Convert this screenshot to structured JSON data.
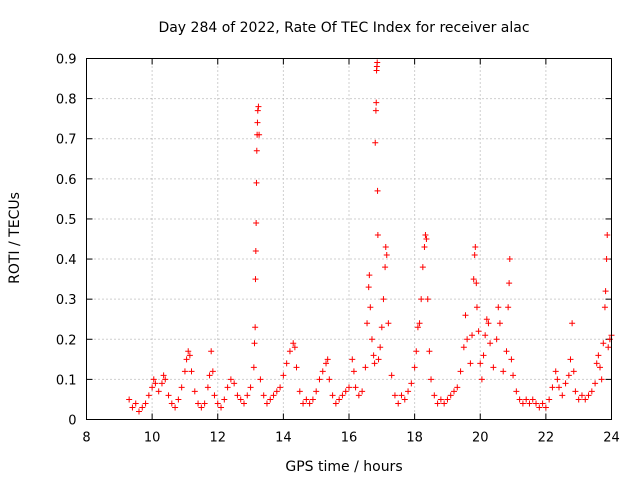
{
  "chart_data": {
    "type": "scatter",
    "title": "Day 284 of 2022, Rate Of TEC Index for receiver alac",
    "xlabel": "GPS time / hours",
    "ylabel": "ROTI / TECUs",
    "xlim": [
      8,
      24
    ],
    "ylim": [
      0,
      0.9
    ],
    "grid": true,
    "xticks": [
      8,
      10,
      12,
      14,
      16,
      18,
      20,
      22,
      24
    ],
    "xtick_labels": [
      "8",
      "10",
      "12",
      "14",
      "16",
      "18",
      "20",
      "22",
      "24"
    ],
    "yticks": [
      0,
      0.1,
      0.2,
      0.3,
      0.4,
      0.5,
      0.6,
      0.7,
      0.8,
      0.9
    ],
    "ytick_labels": [
      "0",
      "0.1",
      "0.2",
      "0.3",
      "0.4",
      "0.5",
      "0.6",
      "0.7",
      "0.8",
      "0.9"
    ],
    "marker": "+",
    "color": "#ff0000",
    "series": [
      {
        "name": "ROTI",
        "points": [
          [
            9.3,
            0.05
          ],
          [
            9.4,
            0.03
          ],
          [
            9.5,
            0.04
          ],
          [
            9.6,
            0.02
          ],
          [
            9.7,
            0.03
          ],
          [
            9.8,
            0.04
          ],
          [
            9.9,
            0.06
          ],
          [
            10.0,
            0.08
          ],
          [
            10.05,
            0.1
          ],
          [
            10.1,
            0.09
          ],
          [
            10.2,
            0.07
          ],
          [
            10.3,
            0.09
          ],
          [
            10.35,
            0.11
          ],
          [
            10.4,
            0.1
          ],
          [
            10.5,
            0.06
          ],
          [
            10.6,
            0.04
          ],
          [
            10.7,
            0.03
          ],
          [
            10.8,
            0.05
          ],
          [
            10.9,
            0.08
          ],
          [
            11.0,
            0.12
          ],
          [
            11.05,
            0.15
          ],
          [
            11.1,
            0.17
          ],
          [
            11.15,
            0.16
          ],
          [
            11.2,
            0.12
          ],
          [
            11.3,
            0.07
          ],
          [
            11.4,
            0.04
          ],
          [
            11.5,
            0.03
          ],
          [
            11.6,
            0.04
          ],
          [
            11.7,
            0.08
          ],
          [
            11.75,
            0.11
          ],
          [
            11.8,
            0.17
          ],
          [
            11.85,
            0.12
          ],
          [
            11.9,
            0.06
          ],
          [
            12.0,
            0.04
          ],
          [
            12.1,
            0.03
          ],
          [
            12.2,
            0.05
          ],
          [
            12.3,
            0.08
          ],
          [
            12.4,
            0.1
          ],
          [
            12.5,
            0.09
          ],
          [
            12.6,
            0.06
          ],
          [
            12.7,
            0.05
          ],
          [
            12.8,
            0.04
          ],
          [
            12.9,
            0.06
          ],
          [
            13.0,
            0.08
          ],
          [
            13.1,
            0.13
          ],
          [
            13.12,
            0.19
          ],
          [
            13.14,
            0.23
          ],
          [
            13.15,
            0.35
          ],
          [
            13.16,
            0.42
          ],
          [
            13.17,
            0.49
          ],
          [
            13.18,
            0.59
          ],
          [
            13.19,
            0.67
          ],
          [
            13.2,
            0.71
          ],
          [
            13.21,
            0.74
          ],
          [
            13.22,
            0.77
          ],
          [
            13.24,
            0.78
          ],
          [
            13.26,
            0.71
          ],
          [
            13.3,
            0.1
          ],
          [
            13.4,
            0.06
          ],
          [
            13.5,
            0.04
          ],
          [
            13.6,
            0.05
          ],
          [
            13.7,
            0.06
          ],
          [
            13.8,
            0.07
          ],
          [
            13.9,
            0.08
          ],
          [
            14.0,
            0.11
          ],
          [
            14.1,
            0.14
          ],
          [
            14.2,
            0.17
          ],
          [
            14.3,
            0.19
          ],
          [
            14.35,
            0.18
          ],
          [
            14.4,
            0.13
          ],
          [
            14.5,
            0.07
          ],
          [
            14.6,
            0.04
          ],
          [
            14.7,
            0.05
          ],
          [
            14.8,
            0.04
          ],
          [
            14.9,
            0.05
          ],
          [
            15.0,
            0.07
          ],
          [
            15.1,
            0.1
          ],
          [
            15.2,
            0.12
          ],
          [
            15.3,
            0.14
          ],
          [
            15.35,
            0.15
          ],
          [
            15.4,
            0.1
          ],
          [
            15.5,
            0.06
          ],
          [
            15.6,
            0.04
          ],
          [
            15.7,
            0.05
          ],
          [
            15.8,
            0.06
          ],
          [
            15.9,
            0.07
          ],
          [
            16.0,
            0.08
          ],
          [
            16.1,
            0.15
          ],
          [
            16.15,
            0.12
          ],
          [
            16.2,
            0.08
          ],
          [
            16.3,
            0.06
          ],
          [
            16.4,
            0.07
          ],
          [
            16.5,
            0.13
          ],
          [
            16.55,
            0.24
          ],
          [
            16.6,
            0.33
          ],
          [
            16.62,
            0.36
          ],
          [
            16.65,
            0.28
          ],
          [
            16.7,
            0.2
          ],
          [
            16.75,
            0.16
          ],
          [
            16.78,
            0.14
          ],
          [
            16.8,
            0.69
          ],
          [
            16.82,
            0.77
          ],
          [
            16.83,
            0.79
          ],
          [
            16.84,
            0.87
          ],
          [
            16.85,
            0.88
          ],
          [
            16.86,
            0.89
          ],
          [
            16.87,
            0.57
          ],
          [
            16.88,
            0.46
          ],
          [
            16.9,
            0.15
          ],
          [
            16.95,
            0.18
          ],
          [
            17.0,
            0.23
          ],
          [
            17.05,
            0.3
          ],
          [
            17.1,
            0.38
          ],
          [
            17.12,
            0.43
          ],
          [
            17.15,
            0.41
          ],
          [
            17.2,
            0.24
          ],
          [
            17.3,
            0.11
          ],
          [
            17.4,
            0.06
          ],
          [
            17.5,
            0.04
          ],
          [
            17.6,
            0.06
          ],
          [
            17.7,
            0.05
          ],
          [
            17.8,
            0.07
          ],
          [
            17.9,
            0.09
          ],
          [
            18.0,
            0.13
          ],
          [
            18.05,
            0.17
          ],
          [
            18.1,
            0.23
          ],
          [
            18.15,
            0.24
          ],
          [
            18.2,
            0.3
          ],
          [
            18.25,
            0.38
          ],
          [
            18.3,
            0.43
          ],
          [
            18.33,
            0.46
          ],
          [
            18.36,
            0.45
          ],
          [
            18.4,
            0.3
          ],
          [
            18.45,
            0.17
          ],
          [
            18.5,
            0.1
          ],
          [
            18.6,
            0.06
          ],
          [
            18.7,
            0.04
          ],
          [
            18.8,
            0.05
          ],
          [
            18.9,
            0.04
          ],
          [
            19.0,
            0.05
          ],
          [
            19.1,
            0.06
          ],
          [
            19.2,
            0.07
          ],
          [
            19.3,
            0.08
          ],
          [
            19.4,
            0.12
          ],
          [
            19.5,
            0.18
          ],
          [
            19.55,
            0.26
          ],
          [
            19.6,
            0.2
          ],
          [
            19.7,
            0.14
          ],
          [
            19.75,
            0.21
          ],
          [
            19.8,
            0.35
          ],
          [
            19.83,
            0.41
          ],
          [
            19.85,
            0.43
          ],
          [
            19.88,
            0.34
          ],
          [
            19.9,
            0.28
          ],
          [
            19.95,
            0.22
          ],
          [
            20.0,
            0.14
          ],
          [
            20.05,
            0.1
          ],
          [
            20.1,
            0.16
          ],
          [
            20.15,
            0.21
          ],
          [
            20.2,
            0.25
          ],
          [
            20.25,
            0.24
          ],
          [
            20.3,
            0.19
          ],
          [
            20.4,
            0.13
          ],
          [
            20.5,
            0.2
          ],
          [
            20.55,
            0.28
          ],
          [
            20.6,
            0.24
          ],
          [
            20.7,
            0.12
          ],
          [
            20.8,
            0.17
          ],
          [
            20.85,
            0.28
          ],
          [
            20.88,
            0.34
          ],
          [
            20.9,
            0.4
          ],
          [
            20.95,
            0.15
          ],
          [
            21.0,
            0.11
          ],
          [
            21.1,
            0.07
          ],
          [
            21.2,
            0.05
          ],
          [
            21.3,
            0.04
          ],
          [
            21.4,
            0.05
          ],
          [
            21.5,
            0.04
          ],
          [
            21.6,
            0.05
          ],
          [
            21.7,
            0.04
          ],
          [
            21.8,
            0.03
          ],
          [
            21.9,
            0.04
          ],
          [
            22.0,
            0.03
          ],
          [
            22.1,
            0.05
          ],
          [
            22.2,
            0.08
          ],
          [
            22.3,
            0.12
          ],
          [
            22.35,
            0.1
          ],
          [
            22.4,
            0.08
          ],
          [
            22.5,
            0.06
          ],
          [
            22.6,
            0.09
          ],
          [
            22.7,
            0.11
          ],
          [
            22.75,
            0.15
          ],
          [
            22.8,
            0.24
          ],
          [
            22.85,
            0.12
          ],
          [
            22.9,
            0.07
          ],
          [
            23.0,
            0.05
          ],
          [
            23.1,
            0.06
          ],
          [
            23.2,
            0.05
          ],
          [
            23.3,
            0.06
          ],
          [
            23.4,
            0.07
          ],
          [
            23.5,
            0.09
          ],
          [
            23.55,
            0.14
          ],
          [
            23.6,
            0.16
          ],
          [
            23.65,
            0.13
          ],
          [
            23.7,
            0.1
          ],
          [
            23.75,
            0.19
          ],
          [
            23.8,
            0.28
          ],
          [
            23.82,
            0.32
          ],
          [
            23.85,
            0.4
          ],
          [
            23.87,
            0.46
          ],
          [
            23.9,
            0.18
          ],
          [
            23.95,
            0.2
          ],
          [
            24.0,
            0.21
          ]
        ]
      }
    ]
  }
}
